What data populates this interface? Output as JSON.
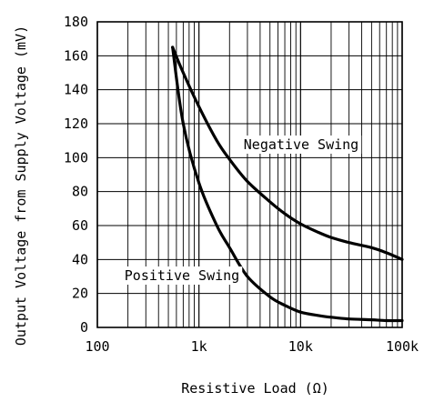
{
  "chart_data": {
    "type": "line",
    "xlabel": "Resistive Load (Ω)",
    "ylabel": "Output Voltage from Supply Voltage (mV)",
    "x_scale": "log",
    "xlim": [
      100,
      100000
    ],
    "ylim": [
      0,
      180
    ],
    "grid": true,
    "x_ticks": [
      {
        "value": 100,
        "label": "100"
      },
      {
        "value": 1000,
        "label": "1k"
      },
      {
        "value": 10000,
        "label": "10k"
      },
      {
        "value": 100000,
        "label": "100k"
      }
    ],
    "y_ticks": [
      0,
      20,
      40,
      60,
      80,
      100,
      120,
      140,
      160,
      180
    ],
    "series": [
      {
        "name": "Negative Swing",
        "color": "#000000",
        "x": [
          550,
          700,
          1000,
          1500,
          2000,
          3000,
          5000,
          7000,
          10000,
          15000,
          20000,
          30000,
          50000,
          70000,
          100000
        ],
        "y": [
          165,
          150,
          130,
          110,
          99,
          86,
          74,
          67,
          61,
          56,
          53,
          50,
          47,
          44,
          40
        ]
      },
      {
        "name": "Positive Swing",
        "color": "#000000",
        "x": [
          550,
          700,
          1000,
          1500,
          2000,
          3000,
          5000,
          7000,
          10000,
          15000,
          20000,
          30000,
          50000,
          70000,
          100000
        ],
        "y": [
          165,
          120,
          85,
          60,
          47,
          30,
          18,
          13,
          9,
          7,
          6,
          5,
          4.5,
          4,
          4
        ]
      }
    ]
  }
}
